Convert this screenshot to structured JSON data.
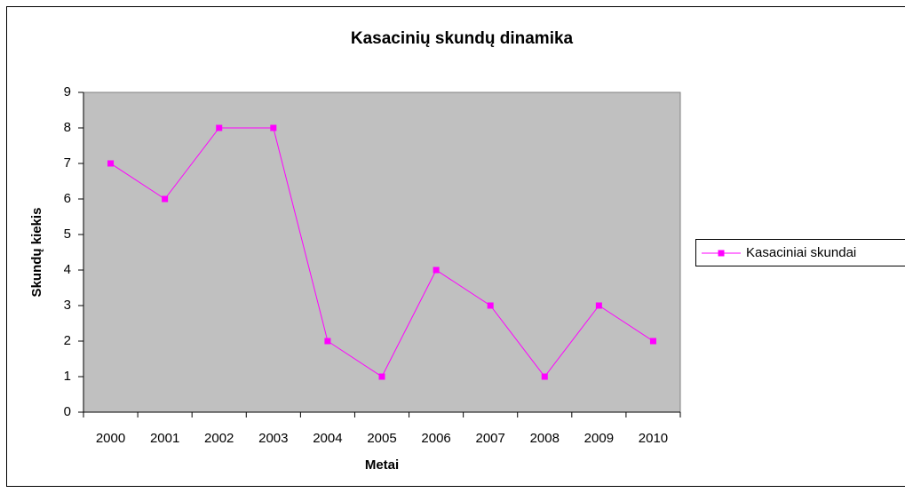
{
  "chart_data": {
    "type": "line",
    "title": "Kasacinių skundų dinamika",
    "x_label": "Metai",
    "y_label": "Skundų kiekis",
    "categories": [
      "2000",
      "2001",
      "2002",
      "2003",
      "2004",
      "2005",
      "2006",
      "2007",
      "2008",
      "2009",
      "2010"
    ],
    "series": [
      {
        "name": "Kasaciniai skundai",
        "color": "#ff00ff",
        "values": [
          7,
          6,
          8,
          8,
          2,
          1,
          4,
          3,
          1,
          3,
          2
        ]
      }
    ],
    "ylim": [
      0,
      9
    ],
    "yticks": [
      0,
      1,
      2,
      3,
      4,
      5,
      6,
      7,
      8,
      9
    ],
    "grid": false,
    "legend": "right"
  }
}
